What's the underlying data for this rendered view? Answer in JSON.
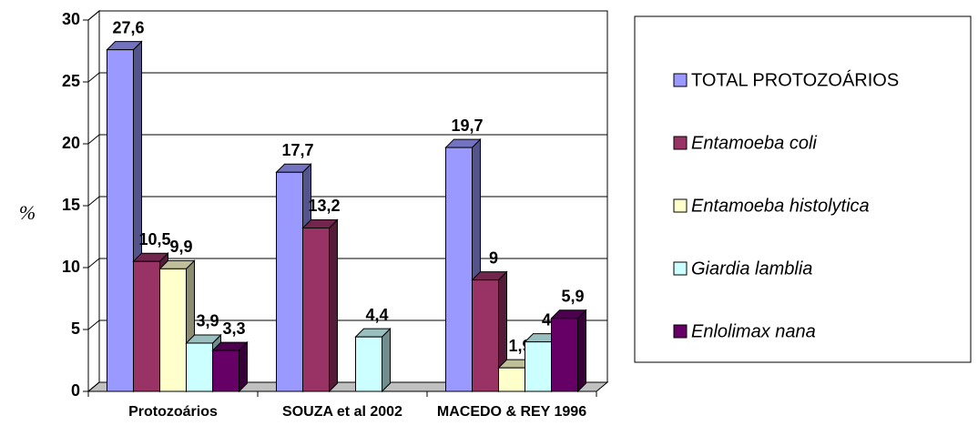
{
  "chart_data": {
    "type": "bar3d",
    "y_label": "%",
    "categories": [
      "Protozoários",
      "SOUZA et al 2002",
      "MACEDO & REY 1996"
    ],
    "series": [
      {
        "name": "TOTAL PROTOZOÁRIOS",
        "color": "#9999ff",
        "values": [
          27.6,
          17.7,
          19.7
        ],
        "value_labels": [
          "27,6",
          "17,7",
          "19,7"
        ]
      },
      {
        "name": "Entamoeba coli",
        "color": "#993366",
        "values": [
          10.5,
          13.2,
          9
        ],
        "value_labels": [
          "10,5",
          "13,2",
          "9"
        ]
      },
      {
        "name": "Entamoeba histolytica",
        "color": "#ffffcc",
        "values": [
          9.9,
          null,
          1.9
        ],
        "value_labels": [
          "9,9",
          null,
          "1,9"
        ]
      },
      {
        "name": "Giardia lamblia",
        "color": "#ccffff",
        "values": [
          3.9,
          4.4,
          4
        ],
        "value_labels": [
          "3,9",
          "4,4",
          "4"
        ]
      },
      {
        "name": "Enlolimax nana",
        "color": "#660066",
        "values": [
          3.3,
          null,
          5.9
        ],
        "value_labels": [
          "3,3",
          null,
          "5,9"
        ]
      }
    ],
    "ylim": [
      0,
      30
    ],
    "yticks": [
      0,
      5,
      10,
      15,
      20,
      25,
      30
    ],
    "grid": true
  }
}
